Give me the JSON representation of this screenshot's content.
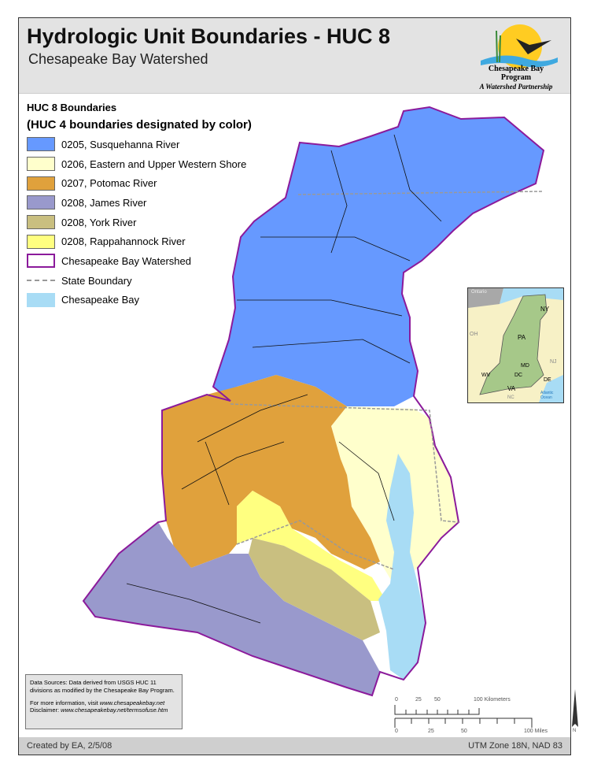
{
  "header": {
    "title": "Hydrologic Unit Boundaries - HUC 8",
    "subtitle": "Chesapeake Bay Watershed",
    "logo_line1": "Chesapeake Bay Program",
    "logo_line2": "A Watershed Partnership"
  },
  "legend": {
    "heading": "HUC 8 Boundaries",
    "subheading": "(HUC 4 boundaries designated by color)",
    "items": [
      {
        "label": "0205, Susquehanna River",
        "color": "#6699ff"
      },
      {
        "label": "0206, Eastern and Upper Western Shore",
        "color": "#ffffcc"
      },
      {
        "label": "0207, Potomac River",
        "color": "#e0a13c"
      },
      {
        "label": "0208, James River",
        "color": "#9999cc"
      },
      {
        "label": "0208, York River",
        "color": "#c9bf80"
      },
      {
        "label": "0208, Rappahannock River",
        "color": "#ffff80"
      },
      {
        "label": "Chesapeake Bay Watershed",
        "color": "#8b1a9b"
      },
      {
        "label": "State Boundary",
        "color": "#999999"
      },
      {
        "label": "Chesapeake Bay",
        "color": "#a8dcf5"
      }
    ]
  },
  "inset": {
    "labels": [
      "Ontario",
      "NY",
      "OH",
      "PA",
      "NJ",
      "MD",
      "WV",
      "DC",
      "DE",
      "VA",
      "NC",
      "Atlantic Ocean"
    ]
  },
  "notes": {
    "sources": "Data Sources:  Data derived from USGS HUC 11 divisions as modified by the Chesapeake Bay Program.",
    "info_prefix": "For more information, visit ",
    "info_url": "www.chesapeakebay.net",
    "disclaimer_prefix": "Disclaimer: ",
    "disclaimer_url": "www.chesapeakebay.net/termsofuse.htm"
  },
  "scale": {
    "km_ticks": [
      "0",
      "25",
      "50",
      "100 Kilometers"
    ],
    "mi_ticks": [
      "0",
      "25",
      "50",
      "100 Miles"
    ],
    "north": "N"
  },
  "footer": {
    "created": "Created by EA, 2/5/08",
    "projection": "UTM Zone 18N, NAD 83"
  }
}
